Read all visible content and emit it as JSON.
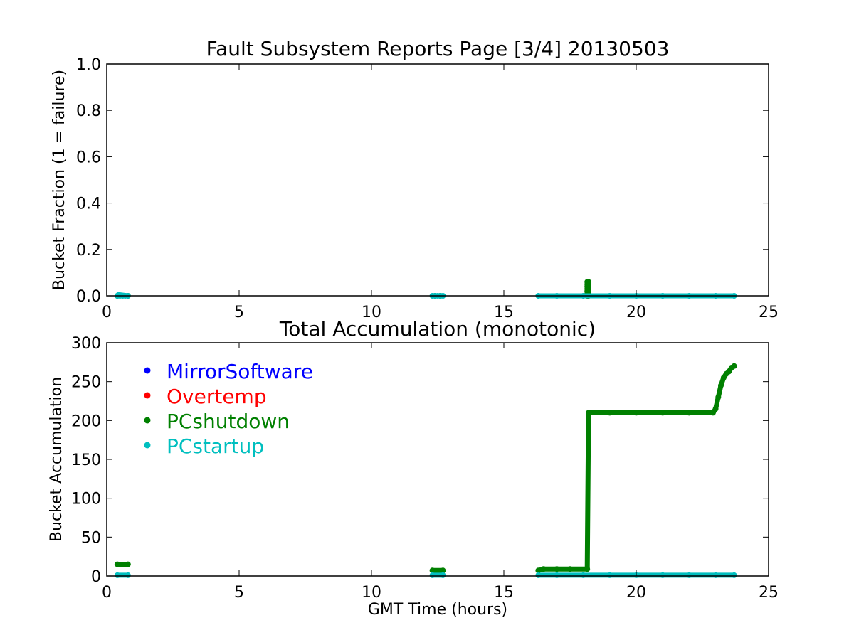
{
  "chart_data": [
    {
      "type": "scatter",
      "title": "Fault Subsystem Reports Page [3/4] 20130503",
      "xlabel": "",
      "ylabel": "Bucket Fraction (1 = failure)",
      "xlim": [
        0,
        25
      ],
      "ylim": [
        0,
        1.0
      ],
      "x_ticks": [
        "0",
        "5",
        "10",
        "15",
        "20",
        "25"
      ],
      "y_ticks": [
        "0.0",
        "0.2",
        "0.4",
        "0.6",
        "0.8",
        "1.0"
      ],
      "grid": false,
      "series": [
        {
          "name": "PCshutdown",
          "color": "#008000",
          "points": [
            [
              0.4,
              0.0
            ],
            [
              0.8,
              0.0
            ],
            [
              12.4,
              0.0
            ],
            [
              12.6,
              0.0
            ],
            [
              18.15,
              0.0
            ],
            [
              18.15,
              0.01
            ],
            [
              18.15,
              0.02
            ],
            [
              18.15,
              0.03
            ],
            [
              18.15,
              0.04
            ],
            [
              18.15,
              0.05
            ],
            [
              18.15,
              0.06
            ],
            [
              18.2,
              0.0
            ],
            [
              18.2,
              0.01
            ],
            [
              18.2,
              0.02
            ],
            [
              18.2,
              0.03
            ],
            [
              18.2,
              0.04
            ],
            [
              18.2,
              0.05
            ],
            [
              18.2,
              0.06
            ]
          ]
        },
        {
          "name": "PCstartup",
          "color": "#00bfbf",
          "points": [
            [
              0.4,
              0.0
            ],
            [
              0.5,
              0.0
            ],
            [
              0.6,
              0.0
            ],
            [
              0.7,
              0.0
            ],
            [
              0.8,
              0.0
            ],
            [
              0.45,
              0.005
            ],
            [
              12.3,
              0.0
            ],
            [
              12.4,
              0.0
            ],
            [
              12.5,
              0.0
            ],
            [
              12.6,
              0.0
            ],
            [
              12.7,
              0.0
            ],
            [
              16.3,
              0.0
            ],
            [
              17.0,
              0.0
            ],
            [
              18.0,
              0.0
            ],
            [
              19.0,
              0.0
            ],
            [
              20.0,
              0.0
            ],
            [
              21.0,
              0.0
            ],
            [
              22.0,
              0.0
            ],
            [
              23.0,
              0.0
            ],
            [
              23.7,
              0.0
            ]
          ]
        }
      ]
    },
    {
      "type": "scatter",
      "title": "Total Accumulation (monotonic)",
      "xlabel": "GMT Time (hours)",
      "ylabel": "Bucket Accumulation",
      "xlim": [
        0,
        25
      ],
      "ylim": [
        0,
        300
      ],
      "x_ticks": [
        "0",
        "5",
        "10",
        "15",
        "20",
        "25"
      ],
      "y_ticks": [
        "0",
        "50",
        "100",
        "150",
        "200",
        "250",
        "300"
      ],
      "grid": false,
      "legend": {
        "placement": "upper-left",
        "entries": [
          {
            "label": "MirrorSoftware",
            "color": "#0000ff"
          },
          {
            "label": "Overtemp",
            "color": "#ff0000"
          },
          {
            "label": "PCshutdown",
            "color": "#008000"
          },
          {
            "label": "PCstartup",
            "color": "#00bfbf"
          }
        ]
      },
      "series": [
        {
          "name": "MirrorSoftware",
          "color": "#0000ff",
          "points": []
        },
        {
          "name": "Overtemp",
          "color": "#ff0000",
          "points": []
        },
        {
          "name": "PCshutdown",
          "color": "#008000",
          "points": [
            [
              0.4,
              15
            ],
            [
              0.8,
              15
            ],
            [
              12.3,
              7
            ],
            [
              12.7,
              7
            ],
            [
              16.3,
              7
            ],
            [
              16.5,
              9
            ],
            [
              17.0,
              9
            ],
            [
              17.5,
              9
            ],
            [
              18.15,
              9
            ],
            [
              18.2,
              210
            ],
            [
              19.0,
              210
            ],
            [
              20.0,
              210
            ],
            [
              21.0,
              210
            ],
            [
              22.0,
              210
            ],
            [
              22.9,
              210
            ],
            [
              23.0,
              215
            ],
            [
              23.1,
              230
            ],
            [
              23.2,
              245
            ],
            [
              23.3,
              255
            ],
            [
              23.4,
              260
            ],
            [
              23.5,
              263
            ],
            [
              23.6,
              268
            ],
            [
              23.7,
              270
            ]
          ]
        },
        {
          "name": "PCstartup",
          "color": "#00bfbf",
          "points": [
            [
              0.4,
              1
            ],
            [
              0.8,
              1
            ],
            [
              12.3,
              1
            ],
            [
              12.7,
              1
            ],
            [
              16.3,
              1
            ],
            [
              17.0,
              1
            ],
            [
              18.0,
              1
            ],
            [
              19.0,
              1
            ],
            [
              20.0,
              1
            ],
            [
              21.0,
              1
            ],
            [
              22.0,
              1
            ],
            [
              23.0,
              1
            ],
            [
              23.7,
              1
            ]
          ]
        }
      ]
    }
  ]
}
